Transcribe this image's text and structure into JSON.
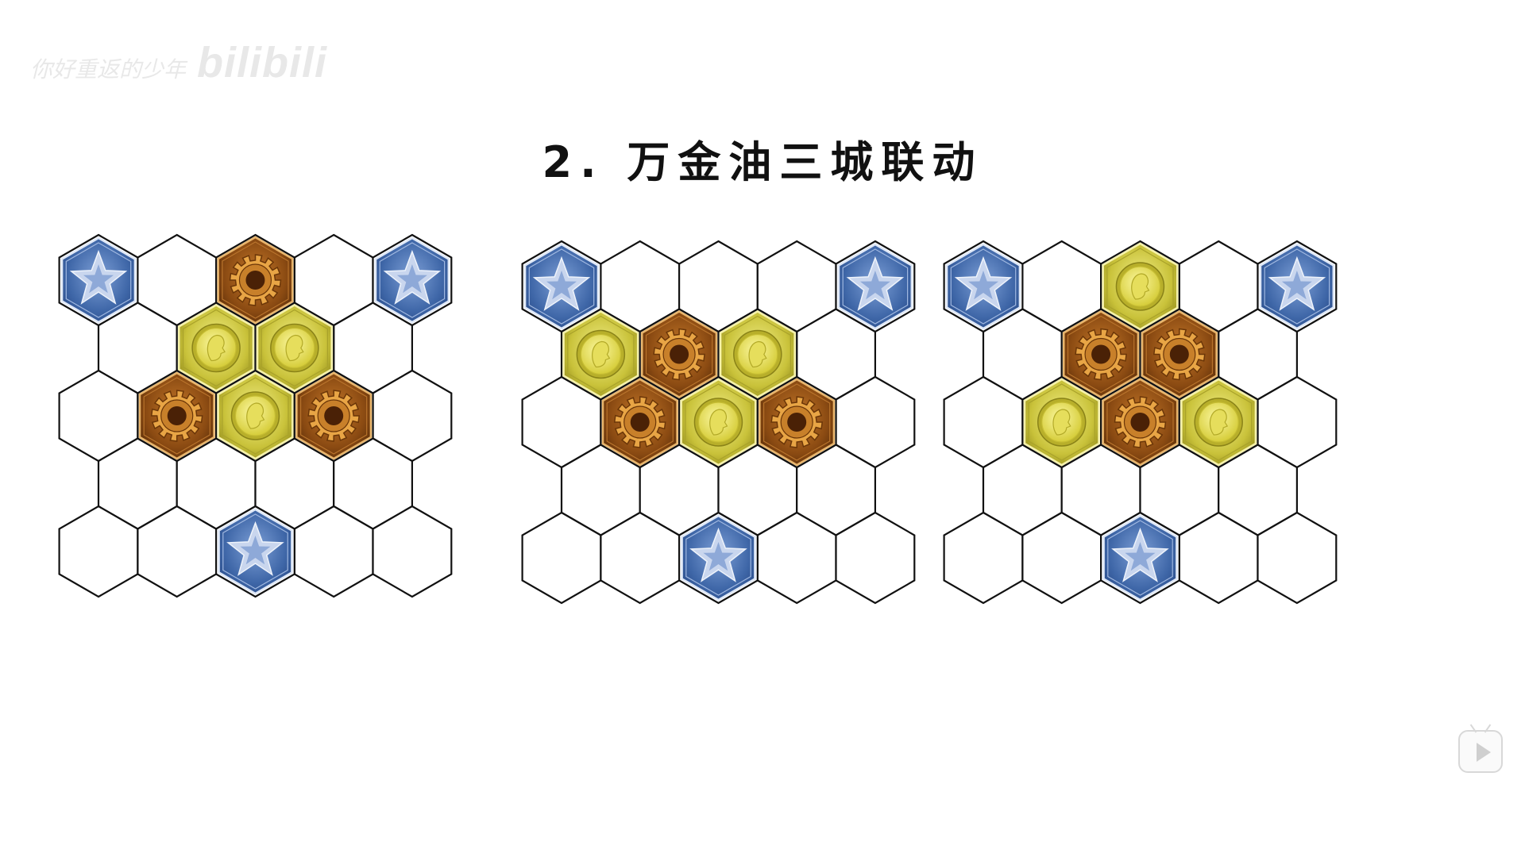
{
  "watermark": {
    "uploader": "你好重返的少年",
    "brand": "bilibili"
  },
  "title": "2. 万金油三城联动",
  "colors": {
    "star": "#3f67a8",
    "gear": "#8a4a12",
    "coin": "#c9c23a",
    "outline": "#111111"
  },
  "tile_types": {
    "S": "star-tile",
    "G": "gear-tile",
    "C": "coin-tile",
    "E": "empty-tile"
  },
  "boards": [
    {
      "name": "board-1",
      "rows": [
        "SEGES",
        "ECCE",
        "EGCGE",
        "EEEE",
        "EESEE"
      ]
    },
    {
      "name": "board-2",
      "rows": [
        "SEEES",
        "CGCE",
        "EGCGE",
        "EEEE",
        "EESEE"
      ]
    },
    {
      "name": "board-3",
      "rows": [
        "SECES",
        "EGGE",
        "ECGCE",
        "EEEE",
        "EESEE"
      ]
    }
  ],
  "controls": {
    "play": "play-icon"
  }
}
